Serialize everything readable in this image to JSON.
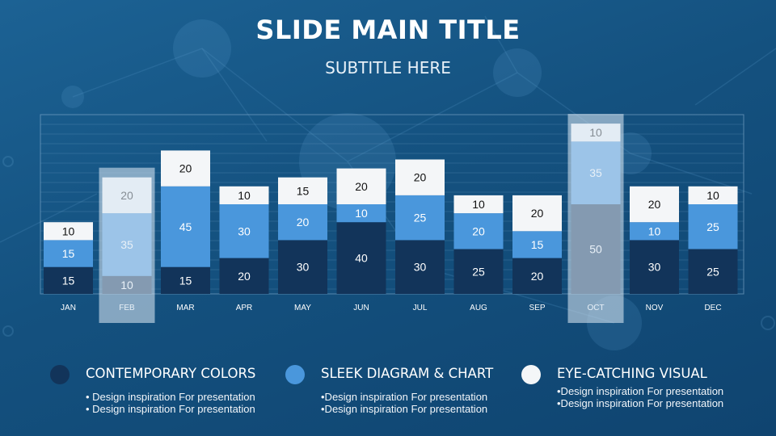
{
  "slide": {
    "title": "SLIDE MAIN TITLE",
    "subtitle": "SUBTITLE HERE"
  },
  "colors": {
    "dark": "#12345a",
    "mid": "#4a97dc",
    "light": "#f4f6f8",
    "highlight_overlay": "#d8e6f2"
  },
  "chart_data": {
    "type": "bar",
    "stacked": true,
    "categories": [
      "JAN",
      "FEB",
      "MAR",
      "APR",
      "MAY",
      "JUN",
      "JUL",
      "AUG",
      "SEP",
      "OCT",
      "NOV",
      "DEC"
    ],
    "series": [
      {
        "values": [
          15,
          10,
          15,
          20,
          30,
          40,
          30,
          25,
          20,
          50,
          30,
          25
        ]
      },
      {
        "values": [
          15,
          35,
          45,
          30,
          20,
          10,
          25,
          20,
          15,
          35,
          10,
          25
        ]
      },
      {
        "values": [
          10,
          20,
          20,
          10,
          15,
          20,
          20,
          10,
          20,
          10,
          20,
          10
        ]
      }
    ],
    "highlighted_categories": [
      "FEB",
      "OCT"
    ],
    "data_labels": true,
    "ylim": [
      0,
      100
    ],
    "grid": true,
    "legend": "bottom"
  },
  "legend": [
    {
      "label": "CONTEMPORARY COLORS",
      "lines": [
        "• Design inspiration For presentation",
        "• Design inspiration For presentation"
      ]
    },
    {
      "label": "SLEEK DIAGRAM & CHART",
      "lines": [
        "•Design inspiration For presentation",
        "•Design inspiration For presentation"
      ]
    },
    {
      "label": "EYE-CATCHING VISUAL",
      "lines": [
        "•Design inspiration For presentation",
        "•Design inspiration For presentation"
      ]
    }
  ]
}
